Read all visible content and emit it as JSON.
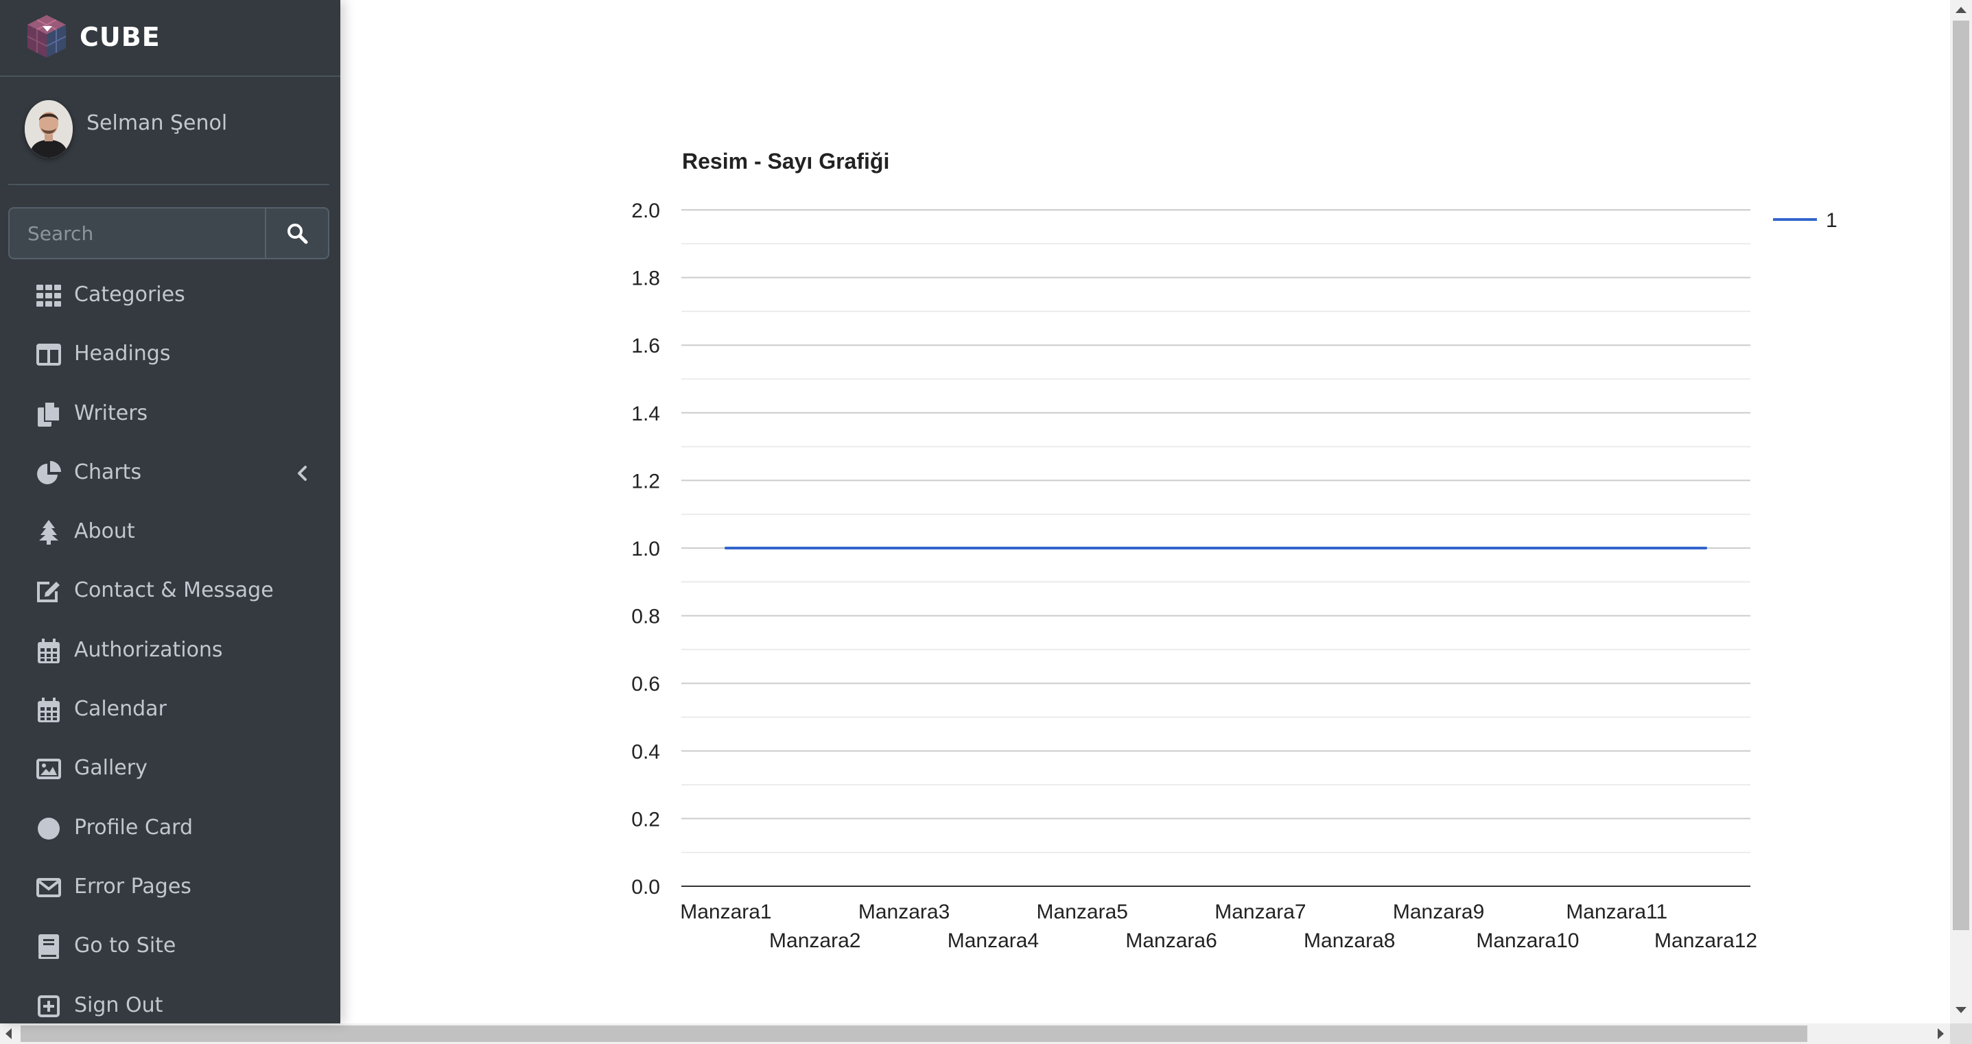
{
  "brand": {
    "name": "CUBE"
  },
  "user": {
    "name": "Selman Şenol"
  },
  "search": {
    "placeholder": "Search"
  },
  "sidebar": {
    "items": [
      {
        "label": "Categories",
        "icon": "grid-icon"
      },
      {
        "label": "Headings",
        "icon": "columns-icon"
      },
      {
        "label": "Writers",
        "icon": "copy-icon"
      },
      {
        "label": "Charts",
        "icon": "chart-pie-icon",
        "has_submenu": true
      },
      {
        "label": "About",
        "icon": "tree-icon"
      },
      {
        "label": "Contact & Message",
        "icon": "edit-icon"
      },
      {
        "label": "Authorizations",
        "icon": "calendar-icon"
      },
      {
        "label": "Calendar",
        "icon": "calendar-icon"
      },
      {
        "label": "Gallery",
        "icon": "image-icon"
      },
      {
        "label": "Profile Card",
        "icon": "circle-icon"
      },
      {
        "label": "Error Pages",
        "icon": "envelope-icon"
      },
      {
        "label": "Go to Site",
        "icon": "book-icon"
      },
      {
        "label": "Sign Out",
        "icon": "plus-square-icon"
      }
    ]
  },
  "colors": {
    "sidebar_bg": "#343a40",
    "sidebar_text": "#c2c7d0",
    "series_line": "#3366cc"
  },
  "chart_data": {
    "type": "line",
    "title": "Resim - Sayı Grafiği",
    "categories": [
      "Manzara1",
      "Manzara2",
      "Manzara3",
      "Manzara4",
      "Manzara5",
      "Manzara6",
      "Manzara7",
      "Manzara8",
      "Manzara9",
      "Manzara10",
      "Manzara11",
      "Manzara12"
    ],
    "series": [
      {
        "name": "1",
        "values": [
          1,
          1,
          1,
          1,
          1,
          1,
          1,
          1,
          1,
          1,
          1,
          1
        ],
        "color": "#3366cc"
      }
    ],
    "yticks": [
      "0.0",
      "0.2",
      "0.4",
      "0.6",
      "0.8",
      "1.0",
      "1.2",
      "1.4",
      "1.6",
      "1.8",
      "2.0"
    ],
    "ylim": [
      0,
      2
    ],
    "grid": true,
    "legend": "right"
  }
}
